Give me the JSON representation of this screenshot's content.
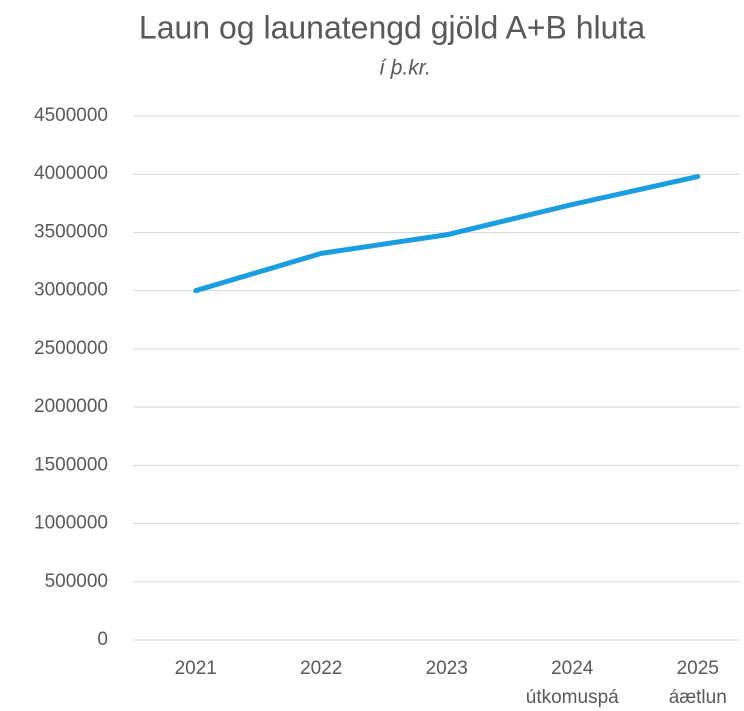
{
  "chart_data": {
    "type": "line",
    "title": "Laun og launatengd gjöld A+B hluta",
    "subtitle": "í þ.kr.",
    "categories": [
      "2021",
      "2022",
      "2023",
      "2024",
      "2025"
    ],
    "category_sublabels": [
      null,
      null,
      null,
      "útkomuspá",
      "áætlun"
    ],
    "series": [
      {
        "name": "Laun og launatengd gjöld",
        "color": "#1b9de2",
        "values": [
          3000000,
          3320000,
          3480000,
          3740000,
          3980000
        ]
      }
    ],
    "ylim": [
      0,
      4500000
    ],
    "yticks": [
      0,
      500000,
      1000000,
      1500000,
      2000000,
      2500000,
      3000000,
      3500000,
      4000000,
      4500000
    ],
    "grid": true
  }
}
